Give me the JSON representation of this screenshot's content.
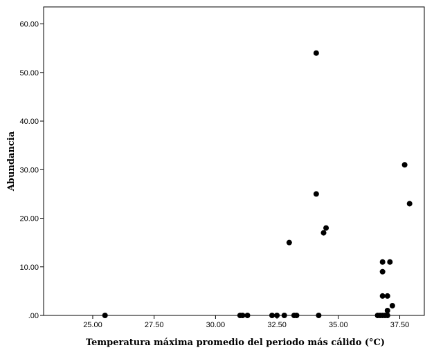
{
  "chart_data": {
    "type": "scatter",
    "title": "",
    "xlabel": "Temperatura máxima promedio del periodo más cálido (°C)",
    "ylabel": "Abundancia",
    "xlim": [
      23.0,
      38.5
    ],
    "ylim": [
      0,
      63.5
    ],
    "grid": false,
    "legend": "none",
    "x_ticks": [
      25.0,
      27.5,
      30.0,
      32.5,
      35.0,
      37.5
    ],
    "x_tick_labels": [
      "25.00",
      "27.50",
      "30.00",
      "32.50",
      "35.00",
      "37.50"
    ],
    "y_ticks": [
      0,
      10,
      20,
      30,
      40,
      50,
      60
    ],
    "y_tick_labels": [
      ".00",
      "10.00",
      "20.00",
      "30.00",
      "40.00",
      "50.00",
      "60.00"
    ],
    "colors": {
      "point": "#000000",
      "frame": "#000000"
    },
    "series": [
      {
        "points": [
          {
            "x": 25.5,
            "y": 0
          },
          {
            "x": 31.0,
            "y": 0
          },
          {
            "x": 31.1,
            "y": 0
          },
          {
            "x": 31.3,
            "y": 0
          },
          {
            "x": 32.3,
            "y": 0
          },
          {
            "x": 32.5,
            "y": 0
          },
          {
            "x": 32.8,
            "y": 0
          },
          {
            "x": 33.2,
            "y": 0
          },
          {
            "x": 33.3,
            "y": 0
          },
          {
            "x": 33.0,
            "y": 15
          },
          {
            "x": 34.1,
            "y": 54
          },
          {
            "x": 34.1,
            "y": 25
          },
          {
            "x": 34.2,
            "y": 0
          },
          {
            "x": 34.4,
            "y": 17
          },
          {
            "x": 34.5,
            "y": 18
          },
          {
            "x": 36.6,
            "y": 0
          },
          {
            "x": 36.7,
            "y": 0
          },
          {
            "x": 36.8,
            "y": 0
          },
          {
            "x": 36.8,
            "y": 11
          },
          {
            "x": 36.8,
            "y": 9
          },
          {
            "x": 36.8,
            "y": 4
          },
          {
            "x": 36.9,
            "y": 0
          },
          {
            "x": 37.0,
            "y": 4
          },
          {
            "x": 37.0,
            "y": 1
          },
          {
            "x": 37.0,
            "y": 0
          },
          {
            "x": 37.1,
            "y": 11
          },
          {
            "x": 37.2,
            "y": 2
          },
          {
            "x": 37.7,
            "y": 31
          },
          {
            "x": 37.9,
            "y": 23
          }
        ]
      }
    ]
  }
}
